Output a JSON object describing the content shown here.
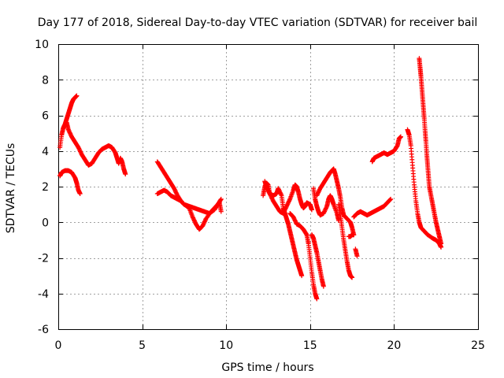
{
  "chart_data": {
    "type": "scatter",
    "title": "Day 177 of 2018, Sidereal Day-to-day VTEC variation (SDTVAR) for receiver bail",
    "xlabel": "GPS time / hours",
    "ylabel": "SDTVAR / TECUs",
    "xlim": [
      0,
      25
    ],
    "ylim": [
      -6,
      10
    ],
    "xticks": [
      0,
      5,
      10,
      15,
      20,
      25
    ],
    "yticks": [
      -6,
      -4,
      -2,
      0,
      2,
      4,
      6,
      8,
      10
    ],
    "grid": true,
    "marker": "+",
    "color": "#ff0000",
    "series": [
      {
        "name": "SDTVAR",
        "segments": [
          [
            [
              0.1,
              2.6
            ],
            [
              0.2,
              2.8
            ],
            [
              0.4,
              2.9
            ],
            [
              0.6,
              2.9
            ],
            [
              0.8,
              2.8
            ],
            [
              1.0,
              2.5
            ],
            [
              1.1,
              2.2
            ],
            [
              1.2,
              1.8
            ],
            [
              1.3,
              1.6
            ]
          ],
          [
            [
              0.1,
              4.2
            ],
            [
              0.2,
              4.9
            ],
            [
              0.3,
              5.3
            ],
            [
              0.4,
              5.5
            ],
            [
              0.5,
              5.8
            ],
            [
              0.6,
              6.1
            ],
            [
              0.7,
              6.4
            ],
            [
              0.8,
              6.7
            ],
            [
              0.9,
              6.9
            ],
            [
              1.0,
              7.0
            ],
            [
              1.1,
              7.1
            ]
          ],
          [
            [
              0.5,
              5.6
            ],
            [
              0.6,
              5.2
            ],
            [
              0.8,
              4.8
            ],
            [
              1.0,
              4.5
            ],
            [
              1.2,
              4.2
            ],
            [
              1.4,
              3.8
            ],
            [
              1.6,
              3.5
            ],
            [
              1.8,
              3.2
            ],
            [
              2.0,
              3.3
            ],
            [
              2.2,
              3.6
            ],
            [
              2.4,
              3.9
            ],
            [
              2.6,
              4.1
            ],
            [
              2.8,
              4.2
            ],
            [
              3.0,
              4.3
            ],
            [
              3.2,
              4.2
            ],
            [
              3.4,
              3.9
            ],
            [
              3.5,
              3.6
            ],
            [
              3.6,
              3.3
            ],
            [
              3.7,
              3.6
            ],
            [
              3.8,
              3.4
            ],
            [
              3.9,
              3.0
            ],
            [
              4.0,
              2.7
            ]
          ],
          [
            [
              5.9,
              1.6
            ],
            [
              6.1,
              1.7
            ],
            [
              6.3,
              1.8
            ],
            [
              6.5,
              1.7
            ],
            [
              6.7,
              1.5
            ],
            [
              6.9,
              1.4
            ],
            [
              7.1,
              1.3
            ],
            [
              7.3,
              1.2
            ],
            [
              7.5,
              1.0
            ],
            [
              7.8,
              0.9
            ],
            [
              8.1,
              0.8
            ],
            [
              8.4,
              0.7
            ],
            [
              8.7,
              0.6
            ],
            [
              9.0,
              0.5
            ],
            [
              9.3,
              0.7
            ],
            [
              9.5,
              1.0
            ],
            [
              9.7,
              1.3
            ]
          ],
          [
            [
              5.9,
              3.4
            ],
            [
              6.1,
              3.1
            ],
            [
              6.3,
              2.8
            ],
            [
              6.5,
              2.5
            ],
            [
              6.7,
              2.2
            ],
            [
              6.9,
              1.9
            ],
            [
              7.1,
              1.5
            ],
            [
              7.3,
              1.2
            ],
            [
              7.5,
              1.0
            ],
            [
              7.8,
              0.8
            ],
            [
              8.0,
              0.3
            ],
            [
              8.2,
              -0.1
            ],
            [
              8.4,
              -0.4
            ],
            [
              8.6,
              -0.2
            ],
            [
              8.8,
              0.2
            ],
            [
              9.1,
              0.6
            ],
            [
              9.4,
              0.9
            ],
            [
              9.6,
              1.1
            ],
            [
              9.7,
              0.6
            ]
          ],
          [
            [
              12.2,
              1.5
            ],
            [
              12.3,
              2.0
            ],
            [
              12.4,
              2.2
            ],
            [
              12.5,
              2.1
            ],
            [
              12.6,
              1.6
            ],
            [
              12.8,
              1.2
            ],
            [
              13.0,
              0.9
            ],
            [
              13.2,
              0.6
            ],
            [
              13.4,
              0.5
            ],
            [
              13.6,
              0.9
            ],
            [
              13.8,
              1.3
            ],
            [
              14.0,
              1.8
            ],
            [
              14.1,
              2.1
            ],
            [
              14.2,
              2.0
            ],
            [
              14.3,
              1.7
            ],
            [
              14.4,
              1.3
            ],
            [
              14.5,
              1.0
            ],
            [
              14.6,
              0.8
            ],
            [
              14.7,
              0.9
            ],
            [
              14.8,
              1.1
            ],
            [
              15.0,
              1.0
            ],
            [
              15.1,
              0.7
            ]
          ],
          [
            [
              12.3,
              2.3
            ],
            [
              12.4,
              2.0
            ],
            [
              12.5,
              1.8
            ],
            [
              12.6,
              1.6
            ],
            [
              12.8,
              1.5
            ],
            [
              13.0,
              1.6
            ],
            [
              13.1,
              1.9
            ],
            [
              13.3,
              1.5
            ],
            [
              13.4,
              0.8
            ],
            [
              13.5,
              0.5
            ],
            [
              13.6,
              0.2
            ],
            [
              13.7,
              -0.1
            ],
            [
              13.8,
              -0.5
            ],
            [
              13.9,
              -0.9
            ],
            [
              14.0,
              -1.3
            ],
            [
              14.1,
              -1.7
            ],
            [
              14.2,
              -2.1
            ],
            [
              14.3,
              -2.4
            ],
            [
              14.4,
              -2.7
            ],
            [
              14.5,
              -3.0
            ]
          ],
          [
            [
              13.8,
              0.5
            ],
            [
              14.0,
              0.3
            ],
            [
              14.2,
              -0.1
            ],
            [
              14.4,
              -0.2
            ],
            [
              14.6,
              -0.4
            ],
            [
              14.8,
              -0.7
            ],
            [
              14.9,
              -1.2
            ],
            [
              15.0,
              -2.0
            ],
            [
              15.1,
              -2.8
            ],
            [
              15.2,
              -3.5
            ],
            [
              15.3,
              -4.0
            ],
            [
              15.4,
              -4.3
            ]
          ],
          [
            [
              15.1,
              -0.7
            ],
            [
              15.2,
              -0.9
            ],
            [
              15.3,
              -1.3
            ],
            [
              15.4,
              -1.7
            ],
            [
              15.5,
              -2.2
            ],
            [
              15.6,
              -2.7
            ],
            [
              15.7,
              -3.2
            ],
            [
              15.8,
              -3.6
            ]
          ],
          [
            [
              15.2,
              1.9
            ],
            [
              15.3,
              1.3
            ],
            [
              15.4,
              0.9
            ],
            [
              15.5,
              0.6
            ],
            [
              15.6,
              0.4
            ],
            [
              15.8,
              0.5
            ],
            [
              16.0,
              0.9
            ],
            [
              16.1,
              1.3
            ],
            [
              16.2,
              1.5
            ],
            [
              16.3,
              1.3
            ],
            [
              16.4,
              1.0
            ],
            [
              16.6,
              0.5
            ],
            [
              16.7,
              0.1
            ]
          ],
          [
            [
              15.4,
              1.5
            ],
            [
              15.6,
              1.9
            ],
            [
              15.8,
              2.2
            ],
            [
              16.0,
              2.5
            ],
            [
              16.2,
              2.8
            ],
            [
              16.4,
              3.0
            ],
            [
              16.5,
              2.7
            ],
            [
              16.6,
              2.3
            ],
            [
              16.7,
              1.9
            ],
            [
              16.8,
              1.4
            ],
            [
              16.9,
              0.8
            ],
            [
              17.0,
              0.4
            ],
            [
              17.2,
              0.2
            ],
            [
              17.4,
              0.0
            ],
            [
              17.5,
              -0.3
            ],
            [
              17.6,
              -0.7
            ]
          ],
          [
            [
              16.7,
              1.0
            ],
            [
              16.8,
              0.4
            ],
            [
              16.9,
              -0.3
            ],
            [
              17.0,
              -1.0
            ],
            [
              17.1,
              -1.6
            ],
            [
              17.2,
              -2.2
            ],
            [
              17.3,
              -2.7
            ],
            [
              17.4,
              -3.0
            ],
            [
              17.5,
              -3.1
            ]
          ],
          [
            [
              17.3,
              -0.8
            ],
            [
              17.4,
              -0.8
            ],
            [
              17.5,
              -0.7
            ],
            [
              17.6,
              -0.7
            ]
          ],
          [
            [
              17.7,
              -1.5
            ],
            [
              17.8,
              -1.9
            ]
          ],
          [
            [
              17.6,
              0.3
            ],
            [
              17.8,
              0.5
            ],
            [
              18.0,
              0.6
            ],
            [
              18.2,
              0.5
            ],
            [
              18.4,
              0.4
            ],
            [
              18.6,
              0.5
            ],
            [
              18.8,
              0.6
            ],
            [
              19.0,
              0.7
            ],
            [
              19.2,
              0.8
            ],
            [
              19.4,
              0.9
            ],
            [
              19.6,
              1.1
            ],
            [
              19.8,
              1.3
            ]
          ],
          [
            [
              18.7,
              3.4
            ],
            [
              18.8,
              3.6
            ],
            [
              19.0,
              3.7
            ],
            [
              19.2,
              3.8
            ],
            [
              19.4,
              3.9
            ],
            [
              19.6,
              3.8
            ],
            [
              19.8,
              3.9
            ],
            [
              20.0,
              4.0
            ],
            [
              20.2,
              4.3
            ],
            [
              20.3,
              4.7
            ],
            [
              20.4,
              4.8
            ]
          ],
          [
            [
              20.8,
              5.2
            ],
            [
              20.9,
              4.9
            ],
            [
              21.0,
              4.3
            ],
            [
              21.1,
              3.2
            ],
            [
              21.2,
              2.1
            ],
            [
              21.3,
              1.2
            ],
            [
              21.4,
              0.5
            ],
            [
              21.5,
              0.0
            ],
            [
              21.6,
              -0.3
            ],
            [
              21.8,
              -0.5
            ],
            [
              22.0,
              -0.7
            ],
            [
              22.3,
              -0.9
            ],
            [
              22.5,
              -1.0
            ],
            [
              22.7,
              -1.2
            ],
            [
              22.8,
              -1.4
            ]
          ],
          [
            [
              21.5,
              9.2
            ],
            [
              21.55,
              8.7
            ],
            [
              21.6,
              8.2
            ],
            [
              21.65,
              7.6
            ],
            [
              21.7,
              7.0
            ],
            [
              21.75,
              6.4
            ],
            [
              21.8,
              5.8
            ],
            [
              21.85,
              5.1
            ],
            [
              21.9,
              4.5
            ],
            [
              21.95,
              3.8
            ],
            [
              22.0,
              3.2
            ],
            [
              22.05,
              2.6
            ],
            [
              22.1,
              2.0
            ],
            [
              22.2,
              1.5
            ],
            [
              22.3,
              1.0
            ],
            [
              22.4,
              0.5
            ],
            [
              22.5,
              0.0
            ],
            [
              22.6,
              -0.4
            ],
            [
              22.7,
              -0.8
            ],
            [
              22.8,
              -1.2
            ]
          ]
        ]
      }
    ]
  }
}
